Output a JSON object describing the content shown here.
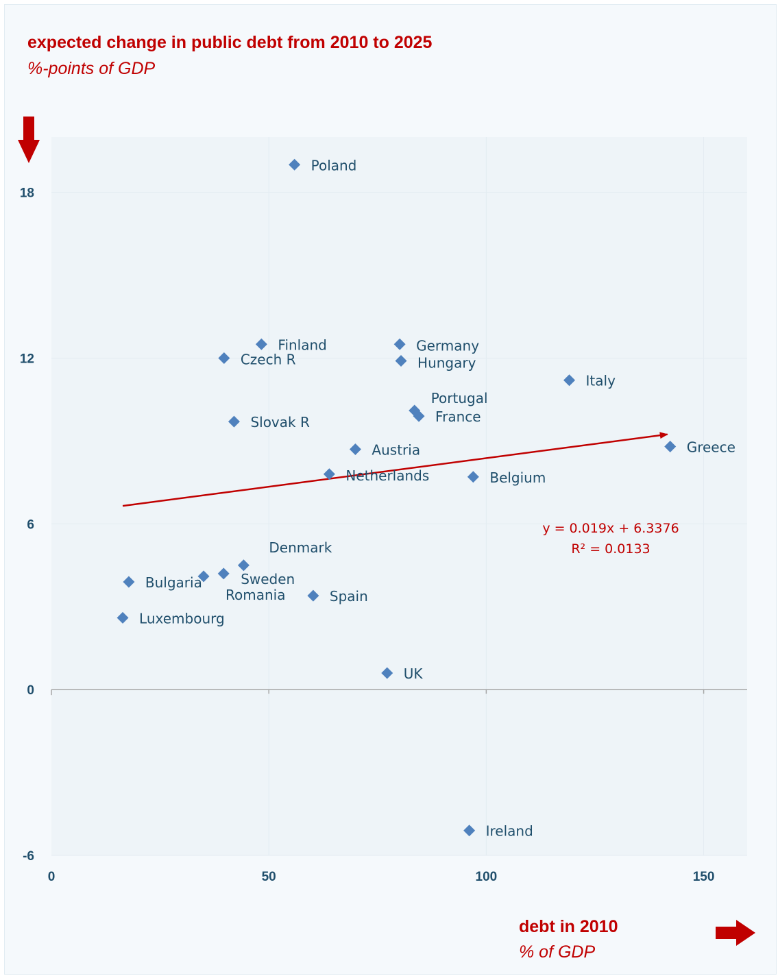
{
  "chart_data": {
    "type": "scatter",
    "title": "expected change in public debt from 2010 to 2025",
    "subtitle": "%-points of GDP",
    "xlabel": "debt in 2010",
    "xunit": "% of GDP",
    "xlim": [
      0,
      160
    ],
    "ylim": [
      -6,
      20
    ],
    "xticks": [
      0,
      50,
      100,
      150
    ],
    "yticks": [
      -6,
      0,
      6,
      12,
      18
    ],
    "grid": true,
    "marker": "diamond",
    "marker_color": "#4f81bd",
    "accent_color": "#c00000",
    "label_color": "#1f4e6b",
    "points": [
      {
        "label": "Poland",
        "x": 55.9,
        "y": 19.0
      },
      {
        "label": "Finland",
        "x": 48.3,
        "y": 12.5
      },
      {
        "label": "Czech R",
        "x": 39.7,
        "y": 12.0
      },
      {
        "label": "Germany",
        "x": 80.1,
        "y": 12.5
      },
      {
        "label": "Hungary",
        "x": 80.4,
        "y": 11.9
      },
      {
        "label": "Italy",
        "x": 119.1,
        "y": 11.2
      },
      {
        "label": "Portugal",
        "x": 83.5,
        "y": 10.1
      },
      {
        "label": "France",
        "x": 84.5,
        "y": 9.9
      },
      {
        "label": "Slovak R",
        "x": 42.0,
        "y": 9.7
      },
      {
        "label": "Austria",
        "x": 69.9,
        "y": 8.7
      },
      {
        "label": "Greece",
        "x": 142.3,
        "y": 8.8
      },
      {
        "label": "Netherlands",
        "x": 63.9,
        "y": 7.8
      },
      {
        "label": "Belgium",
        "x": 97.0,
        "y": 7.7
      },
      {
        "label": "Denmark",
        "x": 44.2,
        "y": 4.5
      },
      {
        "label": "Sweden",
        "x": 39.6,
        "y": 4.2
      },
      {
        "label": "Romania",
        "x": 35.0,
        "y": 4.1
      },
      {
        "label": "Bulgaria",
        "x": 17.8,
        "y": 3.9
      },
      {
        "label": "Spain",
        "x": 60.2,
        "y": 3.4
      },
      {
        "label": "Luxembourg",
        "x": 16.4,
        "y": 2.6
      },
      {
        "label": "UK",
        "x": 77.2,
        "y": 0.6
      },
      {
        "label": "Ireland",
        "x": 96.1,
        "y": -5.1
      }
    ],
    "trendline": {
      "slope": 0.019,
      "intercept": 6.3376,
      "x_range": [
        16.4,
        142.3
      ],
      "equation": "y = 0.019x + 6.3376",
      "r_squared": "R² = 0.0133"
    }
  }
}
